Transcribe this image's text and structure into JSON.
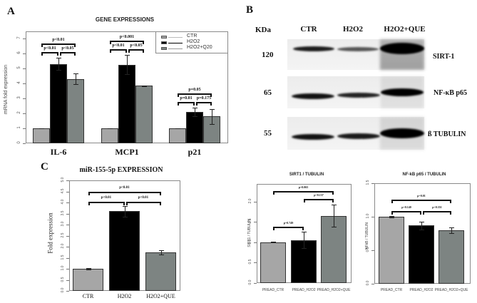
{
  "panels": {
    "A": {
      "letter": "A"
    },
    "B": {
      "letter": "B"
    },
    "C": {
      "letter": "C"
    }
  },
  "colors": {
    "ctr": "#a6a6a6",
    "h2o2": "#000000",
    "treated": "#7d8482"
  },
  "chart_data": [
    {
      "id": "A",
      "type": "bar",
      "title": "GENE EXPRESSIONS",
      "xlabel": "",
      "ylabel": "mRNA fold expression",
      "ylim": [
        0,
        7
      ],
      "yticks": [
        "0",
        "1",
        "2",
        "3",
        "4",
        "5",
        "6",
        "7"
      ],
      "categories": [
        "IL-6",
        "MCP1",
        "p21"
      ],
      "series": [
        {
          "name": "CTR",
          "values": [
            1.0,
            1.0,
            1.0
          ],
          "errors": [
            0.02,
            0.02,
            0.02
          ]
        },
        {
          "name": "H2O2",
          "values": [
            5.3,
            5.25,
            2.1
          ],
          "errors": [
            0.4,
            0.65,
            0.3
          ]
        },
        {
          "name": "H2O2+Q20",
          "values": [
            4.3,
            3.85,
            1.8
          ],
          "errors": [
            0.35,
            0.03,
            0.5
          ]
        }
      ],
      "legend": [
        "CTR",
        "H2O2",
        "H2O2+Q20"
      ],
      "legend_position": "top-right",
      "annotations": [
        {
          "category": "IL-6",
          "labels": [
            "p<0.01",
            "p<0.01",
            "p<0.05"
          ]
        },
        {
          "category": "MCP1",
          "labels": [
            "p<0.001",
            "p<0.01",
            "p<0.05"
          ]
        },
        {
          "category": "p21",
          "labels": [
            "p=0.05",
            "p=0.01",
            "p=0.175"
          ]
        }
      ]
    },
    {
      "id": "B",
      "type": "table",
      "title": "Western blot",
      "lanes": [
        "CTR",
        "H2O2",
        "H2O2+QUE"
      ],
      "kda_header": "KDa",
      "rows": [
        {
          "kda": "120",
          "protein": "SIRT-1"
        },
        {
          "kda": "65",
          "protein": "NF-κB p65"
        },
        {
          "kda": "55",
          "protein": "ß TUBULIN"
        }
      ]
    },
    {
      "id": "C",
      "type": "bar",
      "title": "miR-155-5p EXPRESSION",
      "xlabel": "",
      "ylabel": "Fold expression",
      "ylim": [
        0,
        5
      ],
      "yticks": [
        "0.0",
        "0.5",
        "1.0",
        "1.5",
        "2.0",
        "2.5",
        "3.0",
        "3.5",
        "4.0",
        "4.5",
        "5.0"
      ],
      "categories": [
        "CTR",
        "H2O2",
        "H2O2+QUE"
      ],
      "values": [
        1.0,
        3.6,
        1.75
      ],
      "errors": [
        0.02,
        0.25,
        0.1
      ],
      "annotations": [
        "p<0.01",
        "p<0.01",
        "p<0.01"
      ]
    },
    {
      "id": "B-SIRT1",
      "type": "bar",
      "title": "SIRT1 / TUBULIN",
      "xlabel": "",
      "ylabel": "SIRT1 / TUBULIN",
      "ylim": [
        0,
        2.2
      ],
      "yticks": [
        "0.0",
        "0.5",
        "1.0",
        "1.5",
        "2.0"
      ],
      "categories": [
        "PREAD_CTR",
        "PREAD_H2O2",
        "PREAD_H2O2+QUE"
      ],
      "values": [
        1.0,
        1.05,
        1.65
      ],
      "errors": [
        0.01,
        0.2,
        0.27
      ],
      "annotations": [
        "p=0.065",
        "p=0.137",
        "p=0.749"
      ]
    },
    {
      "id": "B-NFKB",
      "type": "bar",
      "title": "NF-kB p65 / TUBULIN",
      "xlabel": "",
      "ylabel": "NFkB / TUBULIN",
      "ylim": [
        0,
        1.5
      ],
      "yticks": [
        "0.0",
        "0.5",
        "1.0",
        "1.5"
      ],
      "categories": [
        "PREAD_CTR",
        "PREAD_H2O2",
        "PREAD_H2O2+QUE"
      ],
      "values": [
        1.0,
        0.87,
        0.8
      ],
      "errors": [
        0.01,
        0.06,
        0.04
      ],
      "annotations": [
        "p=0.01",
        "p=0.140",
        "p=0.351"
      ]
    }
  ]
}
